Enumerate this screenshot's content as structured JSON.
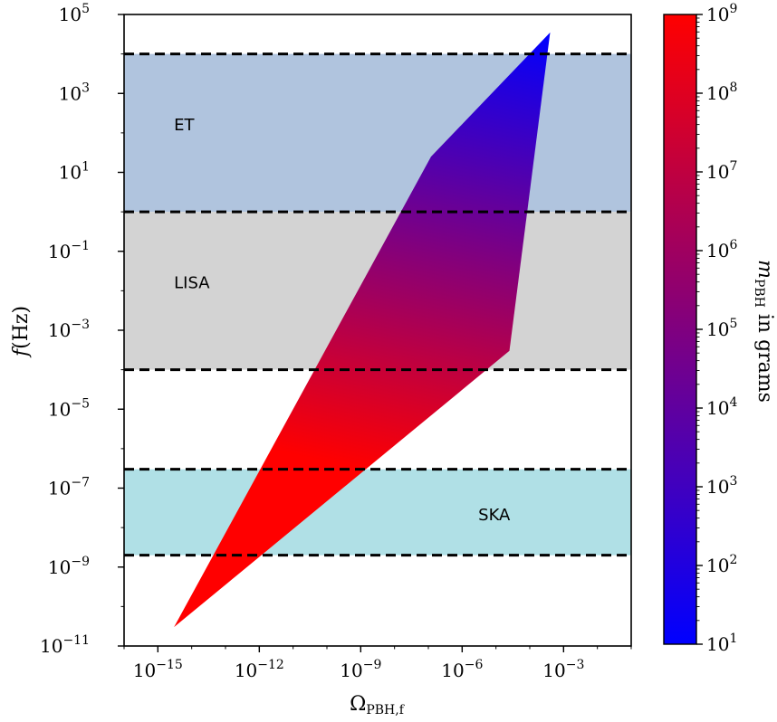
{
  "chart_data": {
    "type": "area",
    "xlabel": "Ω",
    "xlabel_sub": "PBH,f",
    "ylabel": "f",
    "ylabel_unit": "(Hz)",
    "x_scale": "log",
    "y_scale": "log",
    "xlim": [
      1e-16,
      0.1
    ],
    "ylim": [
      1e-11,
      100000
    ],
    "x_ticks": [
      {
        "value": 1e-15,
        "base": "10",
        "exp": "−15"
      },
      {
        "value": 1e-12,
        "base": "10",
        "exp": "−12"
      },
      {
        "value": 1e-09,
        "base": "10",
        "exp": "−9"
      },
      {
        "value": 1e-06,
        "base": "10",
        "exp": "−6"
      },
      {
        "value": 0.001,
        "base": "10",
        "exp": "−3"
      }
    ],
    "y_ticks": [
      {
        "value": 1e-11,
        "base": "10",
        "exp": "−11"
      },
      {
        "value": 1e-09,
        "base": "10",
        "exp": "−9"
      },
      {
        "value": 1e-07,
        "base": "10",
        "exp": "−7"
      },
      {
        "value": 1e-05,
        "base": "10",
        "exp": "−5"
      },
      {
        "value": 0.001,
        "base": "10",
        "exp": "−3"
      },
      {
        "value": 0.1,
        "base": "10",
        "exp": "−1"
      },
      {
        "value": 10,
        "base": "10",
        "exp": "1"
      },
      {
        "value": 1000,
        "base": "10",
        "exp": "3"
      },
      {
        "value": 100000,
        "base": "10",
        "exp": "5"
      }
    ],
    "bands": [
      {
        "name": "ET",
        "f_min": 1,
        "f_max": 10000,
        "color": "#b0c4de",
        "label_x": 3e-15,
        "label_y": 150
      },
      {
        "name": "LISA",
        "f_min": 0.0001,
        "f_max": 1,
        "color": "#d3d3d3",
        "label_x": 3e-15,
        "label_y": 0.015
      },
      {
        "name": "SKA",
        "f_min": 2e-09,
        "f_max": 3e-07,
        "color": "#b0e0e6",
        "label_x": 3e-06,
        "label_y": 2e-08
      }
    ],
    "dashed_levels": [
      10000,
      1,
      0.0001,
      3e-07,
      2e-09
    ],
    "region_polygon": [
      {
        "x": 3e-15,
        "y": 3e-11
      },
      {
        "x": 1.2e-07,
        "y": 25
      },
      {
        "x": 0.0004,
        "y": 35000
      },
      {
        "x": 2.5e-05,
        "y": 0.0003
      }
    ],
    "region_mass_axis": {
      "low_mass_end": {
        "x": 0.0004,
        "y": 35000
      },
      "high_mass_end": {
        "x": 6e-07,
        "y": 1e-07
      }
    },
    "colorbar": {
      "label_main": "m",
      "label_sub": "PBH",
      "label_rest": " in grams",
      "scale": "log",
      "range": [
        10,
        1000000000
      ],
      "color_low": "#0000ff",
      "color_high": "#ff0000",
      "ticks": [
        {
          "value": 10,
          "base": "10",
          "exp": "1"
        },
        {
          "value": 100,
          "base": "10",
          "exp": "2"
        },
        {
          "value": 1000,
          "base": "10",
          "exp": "3"
        },
        {
          "value": 10000,
          "base": "10",
          "exp": "4"
        },
        {
          "value": 100000,
          "base": "10",
          "exp": "5"
        },
        {
          "value": 1000000,
          "base": "10",
          "exp": "6"
        },
        {
          "value": 10000000,
          "base": "10",
          "exp": "7"
        },
        {
          "value": 100000000,
          "base": "10",
          "exp": "8"
        },
        {
          "value": 1000000000,
          "base": "10",
          "exp": "9"
        }
      ]
    }
  }
}
